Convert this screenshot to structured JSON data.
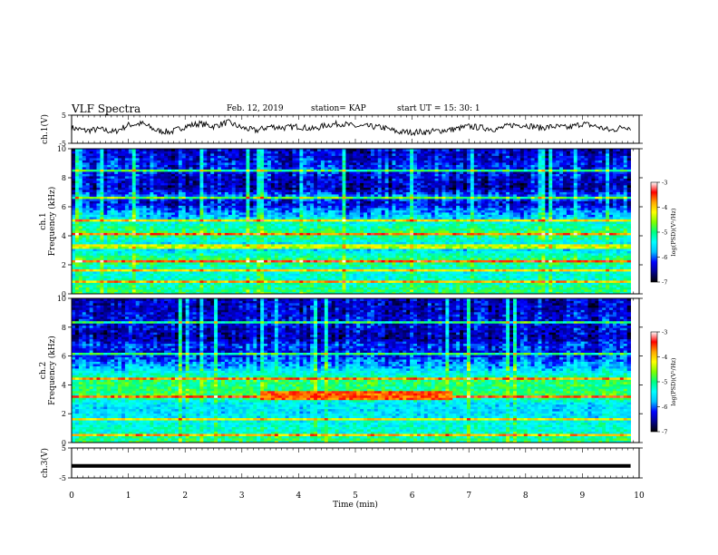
{
  "header": {
    "title": "VLF Spectra",
    "date": "Feb. 12, 2019",
    "station": "station= KAP",
    "start": "start  UT =   15: 30: 1"
  },
  "chart_data": [
    {
      "type": "line",
      "name": "ch1-waveform",
      "ylabel": "ch.1(V)",
      "ylim": [
        -5,
        5
      ],
      "yticks": [
        "5",
        "-5"
      ],
      "xlim": [
        0,
        10
      ],
      "x": [
        0,
        0.25,
        0.5,
        0.75,
        1.0,
        1.25,
        1.5,
        1.75,
        2.0,
        2.25,
        2.5,
        2.75,
        3.0,
        3.25,
        3.5,
        3.75,
        4.0,
        4.25,
        4.5,
        4.75,
        5.0,
        5.25,
        5.5,
        5.75,
        6.0,
        6.25,
        6.5,
        6.75,
        7.0,
        7.25,
        7.5,
        7.75,
        8.0,
        8.25,
        8.5,
        8.75,
        9.0,
        9.25,
        9.5,
        9.75,
        9.85
      ],
      "values": [
        0.5,
        -0.5,
        0.0,
        -1.0,
        1.5,
        2.0,
        -0.5,
        -1.0,
        1.0,
        2.0,
        1.0,
        2.5,
        0.5,
        -0.5,
        1.0,
        0.5,
        1.0,
        0.0,
        1.5,
        2.0,
        1.0,
        1.0,
        0.5,
        -1.0,
        -1.0,
        -1.0,
        -0.5,
        0.0,
        1.0,
        0.5,
        0.0,
        1.5,
        1.5,
        0.5,
        1.0,
        0.5,
        2.0,
        1.0,
        -0.5,
        1.0,
        0.5
      ]
    },
    {
      "type": "heatmap",
      "name": "ch1-spectrogram",
      "ylabel": "ch.1  Frequency (kHz)",
      "ylim": [
        0,
        10
      ],
      "yticks": [
        "0",
        "2",
        "4",
        "6",
        "8",
        "10"
      ],
      "xlim": [
        0,
        10
      ],
      "colorbar": {
        "label": "log(PSD)(V²/Hz)",
        "range": [
          -7,
          -3
        ],
        "ticks": [
          "-3",
          "-4",
          "-5",
          "-6",
          "-7"
        ]
      },
      "freq_kHz": [
        0.25,
        0.75,
        1.25,
        1.75,
        2.25,
        2.75,
        3.25,
        3.75,
        4.25,
        4.75,
        5.25,
        5.75,
        6.25,
        6.75,
        7.25,
        7.75,
        8.25,
        8.75,
        9.25,
        9.75
      ],
      "mean_log_psd": [
        -5.0,
        -5.2,
        -5.3,
        -5.4,
        -4.8,
        -5.3,
        -5.8,
        -5.2,
        -4.9,
        -5.2,
        -5.6,
        -5.9,
        -6.4,
        -5.9,
        -6.5,
        -6.4,
        -6.3,
        -6.2,
        -6.3,
        -6.4
      ],
      "lines_kHz": [
        0.9,
        1.6,
        2.3,
        3.3,
        4.1,
        5.1,
        6.6,
        8.5
      ]
    },
    {
      "type": "heatmap",
      "name": "ch2-spectrogram",
      "ylabel": "ch.2  Frequency (kHz)",
      "ylim": [
        0,
        10
      ],
      "yticks": [
        "0",
        "2",
        "4",
        "6",
        "8",
        "10"
      ],
      "xlim": [
        0,
        10
      ],
      "colorbar": {
        "label": "log(PSD)(V²/Hz)",
        "range": [
          -7,
          -3
        ],
        "ticks": [
          "-3",
          "-4",
          "-5",
          "-6",
          "-7"
        ]
      },
      "freq_kHz": [
        0.25,
        0.75,
        1.25,
        1.75,
        2.25,
        2.75,
        3.25,
        3.75,
        4.25,
        4.75,
        5.25,
        5.75,
        6.25,
        6.75,
        7.25,
        7.75,
        8.25,
        8.75,
        9.25,
        9.75
      ],
      "mean_log_psd": [
        -5.0,
        -5.3,
        -5.3,
        -5.5,
        -5.6,
        -5.5,
        -4.8,
        -5.0,
        -4.9,
        -5.3,
        -5.7,
        -6.0,
        -6.3,
        -6.1,
        -6.5,
        -6.4,
        -6.3,
        -6.3,
        -6.4,
        -6.4
      ],
      "lines_kHz": [
        0.6,
        1.6,
        3.2,
        4.5,
        6.2,
        8.4
      ],
      "band": {
        "x": [
          3.3,
          6.7
        ],
        "y_kHz": [
          3.0,
          3.6
        ],
        "log_psd": -3.6
      }
    },
    {
      "type": "line",
      "name": "ch3-signal",
      "ylabel": "ch.3(V)",
      "ylim": [
        -5,
        5
      ],
      "yticks": [
        "5",
        "-5"
      ],
      "xlim": [
        0,
        10
      ],
      "x": [
        0,
        9.85
      ],
      "values": [
        -1.0,
        -1.0
      ]
    }
  ],
  "xaxis": {
    "label": "Time  (min)",
    "ticks": [
      "0",
      "1",
      "2",
      "3",
      "4",
      "5",
      "6",
      "7",
      "8",
      "9",
      "10"
    ]
  },
  "colors": {
    "colormap": [
      "#000000",
      "#00008b",
      "#0000ff",
      "#00bfff",
      "#00ffff",
      "#00ff7f",
      "#7fff00",
      "#ffff00",
      "#ffa500",
      "#ff0000",
      "#ffffff"
    ],
    "axis": "#000000",
    "line": "#000000"
  }
}
